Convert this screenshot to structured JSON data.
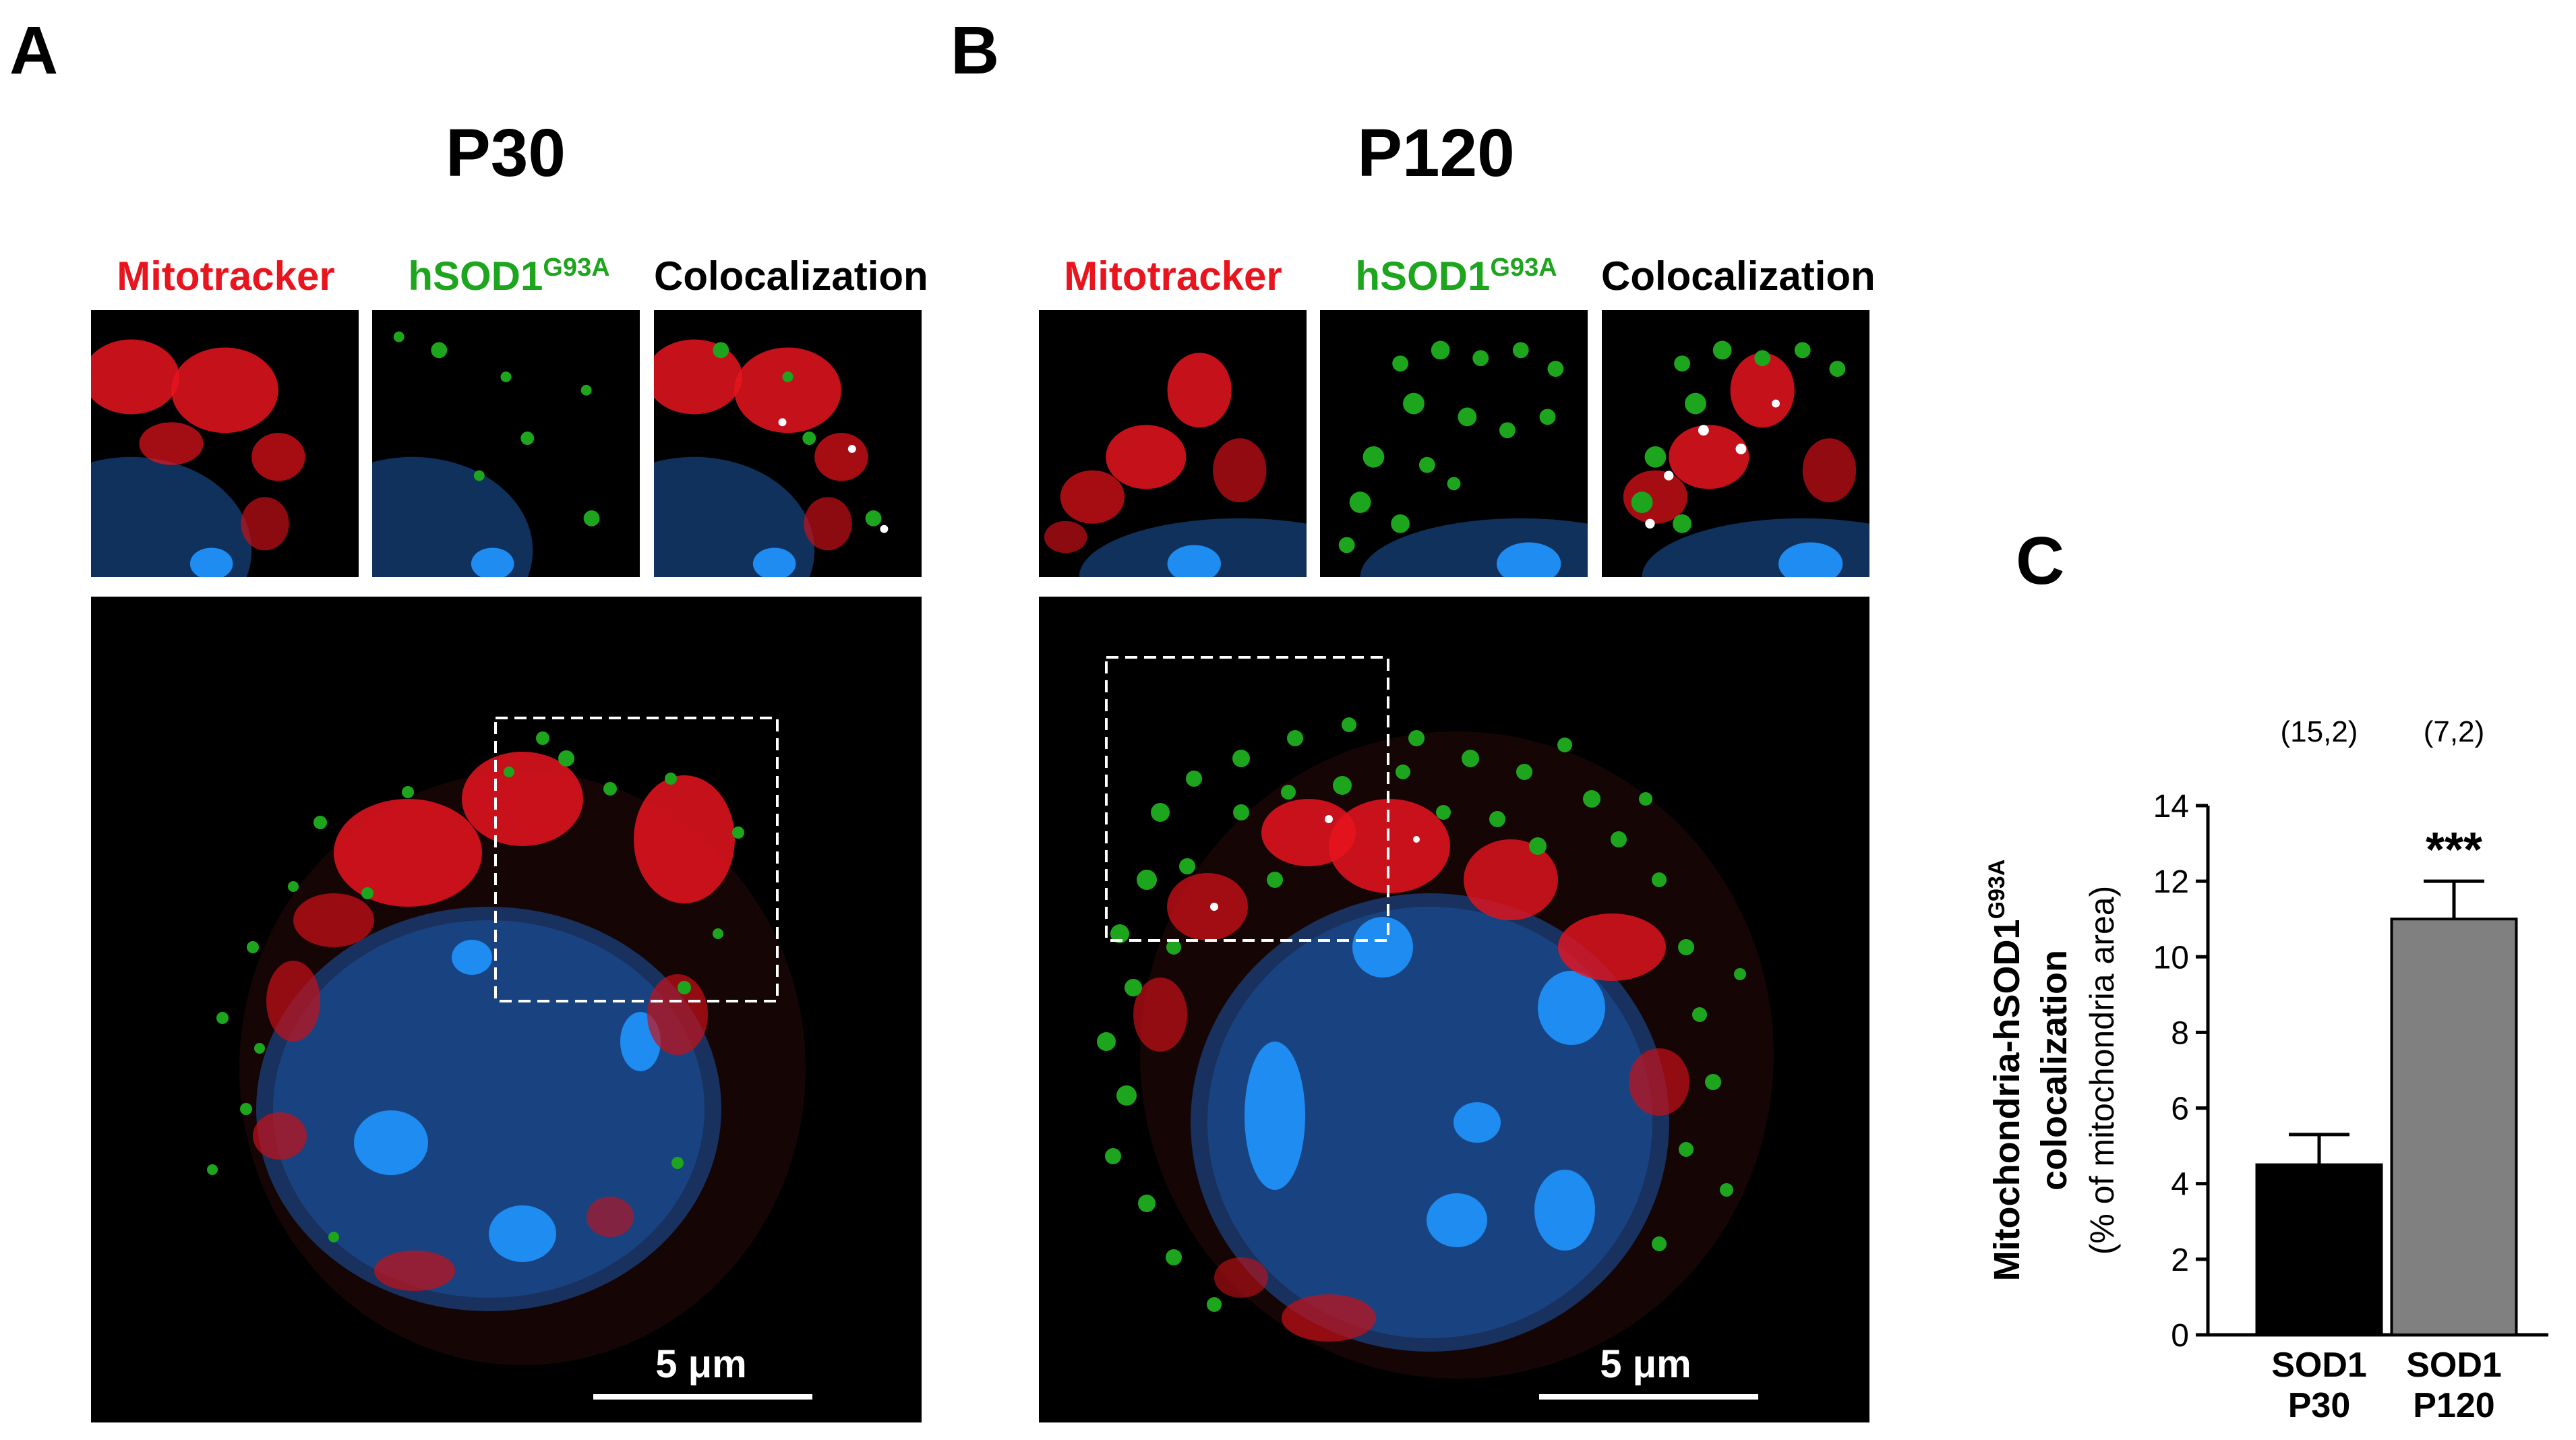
{
  "panels": {
    "a": {
      "letter": "A",
      "title": "P30",
      "channels": [
        "Mitotracker",
        "hSOD1",
        "Colocalization"
      ],
      "channel_superscript": "G93A",
      "scale_label": "5 μm"
    },
    "b": {
      "letter": "B",
      "title": "P120",
      "channels": [
        "Mitotracker",
        "hSOD1",
        "Colocalization"
      ],
      "channel_superscript": "G93A",
      "scale_label": "5 μm"
    },
    "c": {
      "letter": "C"
    }
  },
  "colors": {
    "mitotracker": "#e8141e",
    "hsod1": "#1ea51e",
    "dapi": "#1e8cf0",
    "colocalization": "#ffffff",
    "bar_p30": "#000000",
    "bar_p120": "#808080"
  },
  "chart_data": {
    "type": "bar",
    "categories": [
      {
        "line1": "SOD1",
        "line2": "P30"
      },
      {
        "line1": "SOD1",
        "line2": "P120"
      }
    ],
    "values": [
      4.5,
      11.0
    ],
    "errors": [
      0.8,
      1.0
    ],
    "n_labels": [
      "(15,2)",
      "(7,2)"
    ],
    "significance": [
      "",
      "***"
    ],
    "ylabel_line1": "Mitochondria-hSOD1",
    "ylabel_sup": "G93A",
    "ylabel_line2": "colocalization",
    "ylabel_line3": "(% of mitochondria area)",
    "ylim": [
      0,
      14
    ],
    "yticks": [
      0,
      2,
      4,
      6,
      8,
      10,
      12,
      14
    ]
  }
}
